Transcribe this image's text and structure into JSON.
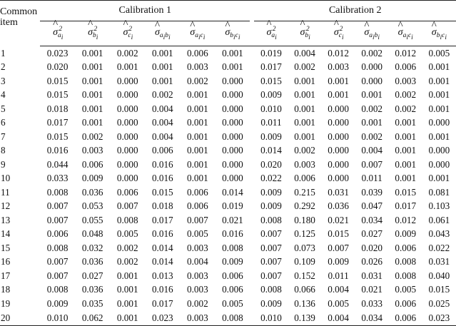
{
  "table": {
    "item_header_line1": "Common",
    "item_header_line2": "item",
    "group_labels": [
      "Calibration 1",
      "Calibration 2"
    ],
    "symbol_columns": [
      {
        "base": "σ",
        "sub": "a",
        "subsub": "i",
        "sup": "2"
      },
      {
        "base": "σ",
        "sub": "b",
        "subsub": "i",
        "sup": "2"
      },
      {
        "base": "σ",
        "sub": "c",
        "subsub": "i",
        "sup": "2"
      },
      {
        "base": "σ",
        "sub": "a",
        "subsub": "i",
        "sub2": "b",
        "subsub2": "i"
      },
      {
        "base": "σ",
        "sub": "a",
        "subsub": "i",
        "sub2": "c",
        "subsub2": "i"
      },
      {
        "base": "σ",
        "sub": "b",
        "subsub": "i",
        "sub2": "c",
        "subsub2": "i"
      }
    ],
    "rows": [
      {
        "item": "1",
        "c1": [
          "0.023",
          "0.001",
          "0.002",
          "0.001",
          "0.006",
          "0.001"
        ],
        "c2": [
          "0.019",
          "0.004",
          "0.012",
          "0.002",
          "0.012",
          "0.005"
        ]
      },
      {
        "item": "2",
        "c1": [
          "0.020",
          "0.001",
          "0.001",
          "0.001",
          "0.003",
          "0.001"
        ],
        "c2": [
          "0.017",
          "0.002",
          "0.003",
          "0.000",
          "0.006",
          "0.001"
        ]
      },
      {
        "item": "3",
        "c1": [
          "0.015",
          "0.001",
          "0.000",
          "0.001",
          "0.002",
          "0.000"
        ],
        "c2": [
          "0.015",
          "0.001",
          "0.001",
          "0.000",
          "0.003",
          "0.001"
        ]
      },
      {
        "item": "4",
        "c1": [
          "0.015",
          "0.001",
          "0.000",
          "0.002",
          "0.001",
          "0.000"
        ],
        "c2": [
          "0.009",
          "0.001",
          "0.001",
          "0.001",
          "0.002",
          "0.001"
        ]
      },
      {
        "item": "5",
        "c1": [
          "0.018",
          "0.001",
          "0.000",
          "0.004",
          "0.001",
          "0.000"
        ],
        "c2": [
          "0.010",
          "0.001",
          "0.000",
          "0.002",
          "0.002",
          "0.001"
        ]
      },
      {
        "item": "6",
        "c1": [
          "0.017",
          "0.001",
          "0.000",
          "0.004",
          "0.001",
          "0.000"
        ],
        "c2": [
          "0.011",
          "0.001",
          "0.000",
          "0.001",
          "0.001",
          "0.000"
        ]
      },
      {
        "item": "7",
        "c1": [
          "0.015",
          "0.002",
          "0.000",
          "0.004",
          "0.001",
          "0.000"
        ],
        "c2": [
          "0.009",
          "0.001",
          "0.000",
          "0.002",
          "0.001",
          "0.001"
        ]
      },
      {
        "item": "8",
        "c1": [
          "0.016",
          "0.003",
          "0.000",
          "0.006",
          "0.001",
          "0.000"
        ],
        "c2": [
          "0.014",
          "0.002",
          "0.000",
          "0.004",
          "0.001",
          "0.000"
        ]
      },
      {
        "item": "9",
        "c1": [
          "0.044",
          "0.006",
          "0.000",
          "0.016",
          "0.001",
          "0.000"
        ],
        "c2": [
          "0.020",
          "0.003",
          "0.000",
          "0.007",
          "0.001",
          "0.000"
        ]
      },
      {
        "item": "10",
        "c1": [
          "0.033",
          "0.009",
          "0.000",
          "0.016",
          "0.001",
          "0.000"
        ],
        "c2": [
          "0.022",
          "0.006",
          "0.000",
          "0.011",
          "0.001",
          "0.001"
        ]
      },
      {
        "item": "11",
        "c1": [
          "0.008",
          "0.036",
          "0.006",
          "0.015",
          "0.006",
          "0.014"
        ],
        "c2": [
          "0.009",
          "0.215",
          "0.031",
          "0.039",
          "0.015",
          "0.081"
        ]
      },
      {
        "item": "12",
        "c1": [
          "0.007",
          "0.053",
          "0.007",
          "0.018",
          "0.006",
          "0.019"
        ],
        "c2": [
          "0.009",
          "0.292",
          "0.036",
          "0.047",
          "0.017",
          "0.103"
        ]
      },
      {
        "item": "13",
        "c1": [
          "0.007",
          "0.055",
          "0.008",
          "0.017",
          "0.007",
          "0.021"
        ],
        "c2": [
          "0.008",
          "0.180",
          "0.021",
          "0.034",
          "0.012",
          "0.061"
        ]
      },
      {
        "item": "14",
        "c1": [
          "0.006",
          "0.048",
          "0.005",
          "0.016",
          "0.005",
          "0.016"
        ],
        "c2": [
          "0.007",
          "0.125",
          "0.015",
          "0.027",
          "0.009",
          "0.043"
        ]
      },
      {
        "item": "15",
        "c1": [
          "0.008",
          "0.032",
          "0.002",
          "0.014",
          "0.003",
          "0.008"
        ],
        "c2": [
          "0.007",
          "0.073",
          "0.007",
          "0.020",
          "0.006",
          "0.022"
        ]
      },
      {
        "item": "16",
        "c1": [
          "0.007",
          "0.036",
          "0.002",
          "0.014",
          "0.004",
          "0.009"
        ],
        "c2": [
          "0.007",
          "0.109",
          "0.009",
          "0.026",
          "0.008",
          "0.031"
        ]
      },
      {
        "item": "17",
        "c1": [
          "0.007",
          "0.027",
          "0.001",
          "0.013",
          "0.003",
          "0.006"
        ],
        "c2": [
          "0.007",
          "0.152",
          "0.011",
          "0.031",
          "0.008",
          "0.040"
        ]
      },
      {
        "item": "18",
        "c1": [
          "0.008",
          "0.036",
          "0.001",
          "0.016",
          "0.003",
          "0.006"
        ],
        "c2": [
          "0.008",
          "0.066",
          "0.004",
          "0.021",
          "0.005",
          "0.015"
        ]
      },
      {
        "item": "19",
        "c1": [
          "0.009",
          "0.035",
          "0.001",
          "0.017",
          "0.002",
          "0.005"
        ],
        "c2": [
          "0.009",
          "0.136",
          "0.005",
          "0.033",
          "0.006",
          "0.025"
        ]
      },
      {
        "item": "20",
        "c1": [
          "0.010",
          "0.062",
          "0.001",
          "0.023",
          "0.003",
          "0.008"
        ],
        "c2": [
          "0.010",
          "0.139",
          "0.004",
          "0.034",
          "0.006",
          "0.023"
        ]
      }
    ]
  }
}
